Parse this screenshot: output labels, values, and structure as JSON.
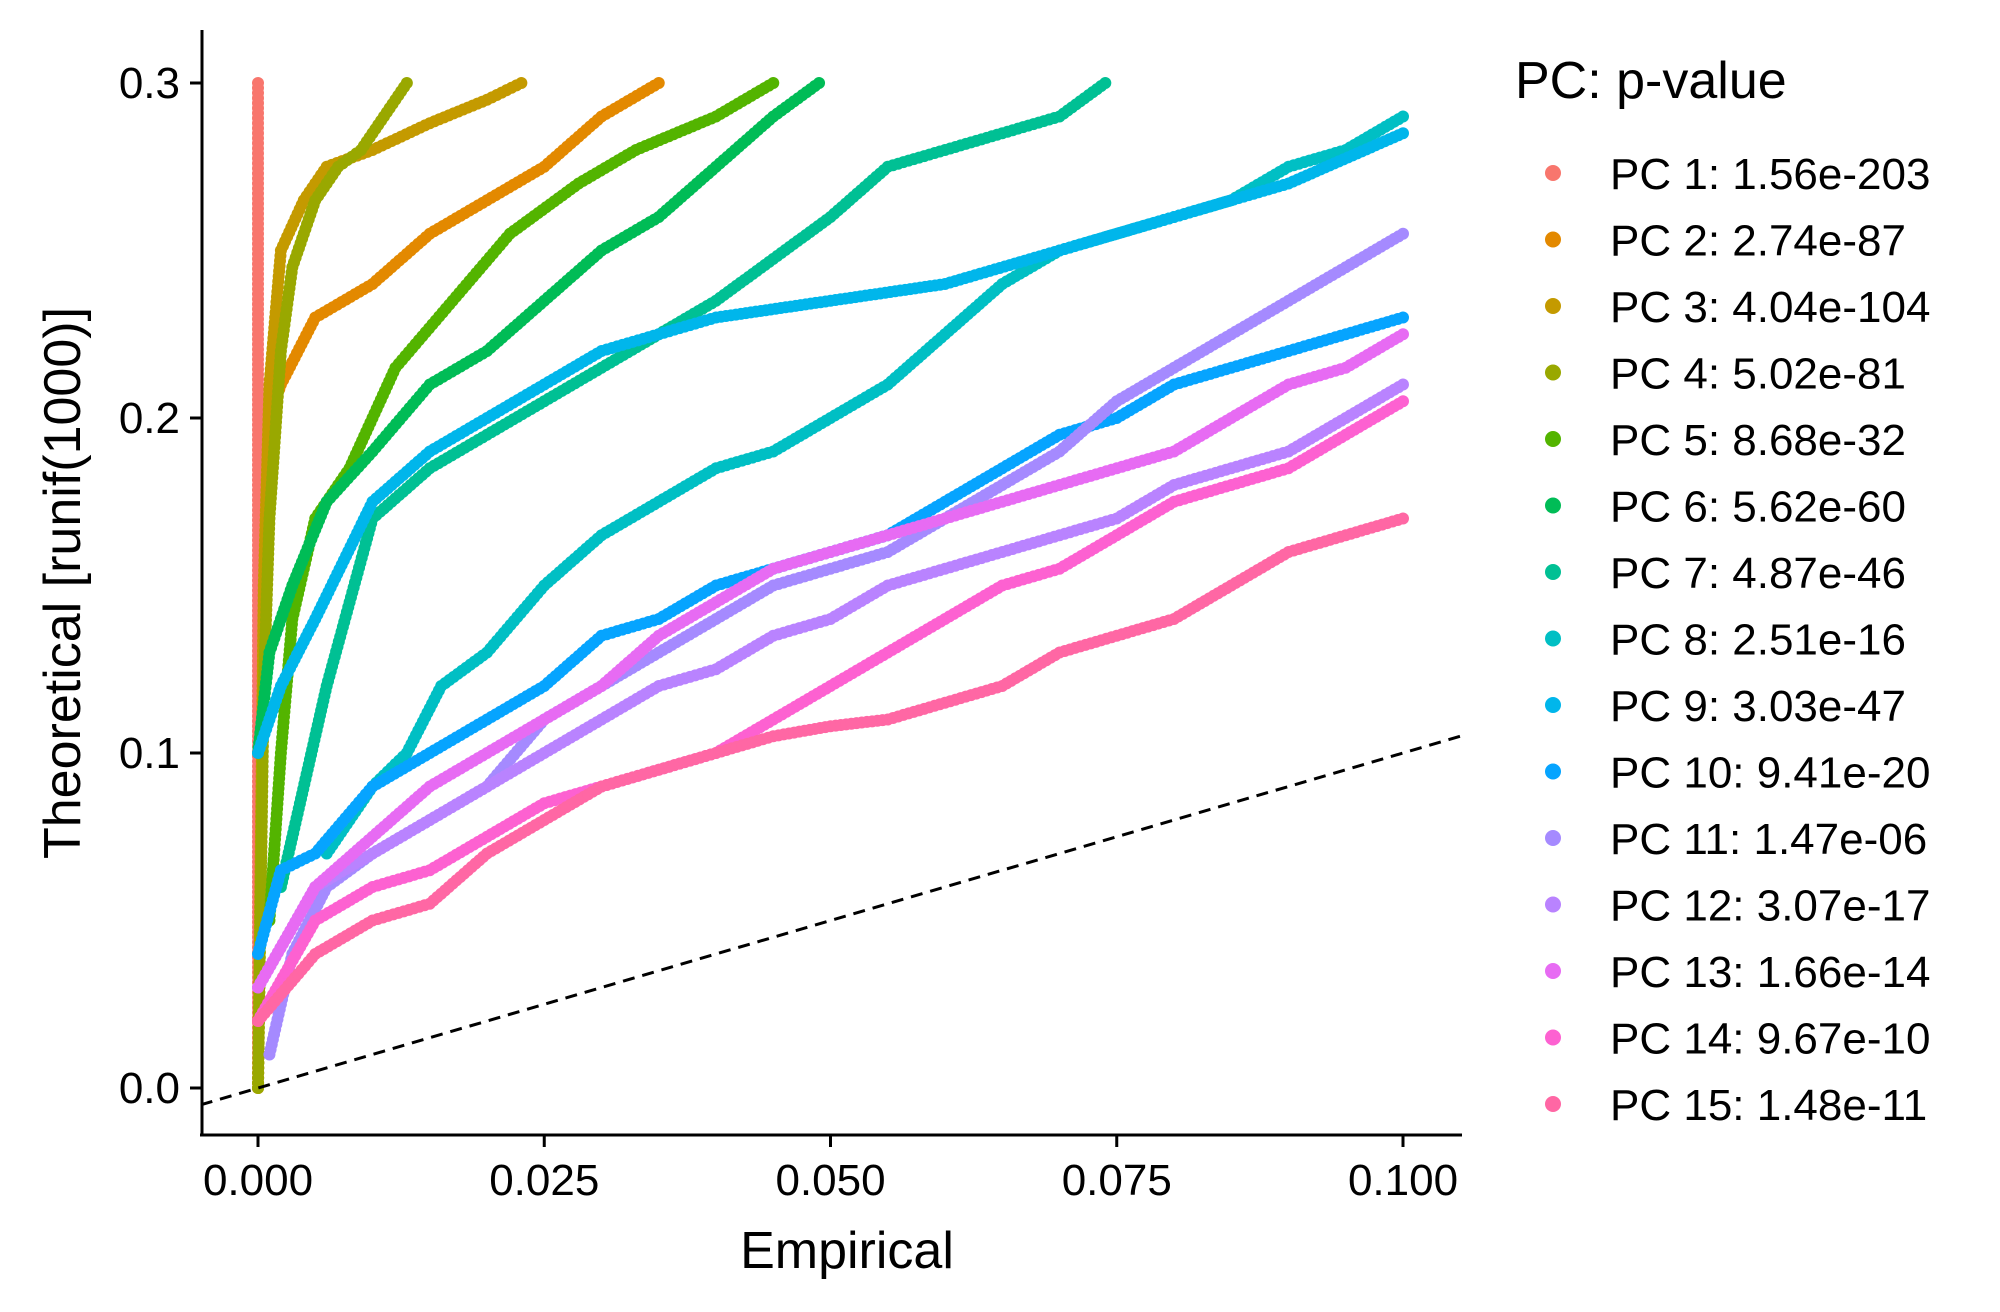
{
  "chart_data": {
    "type": "scatter",
    "title": "",
    "xlabel": "Empirical",
    "ylabel": "Theoretical [runif(1000)]",
    "xlim": [
      -0.005,
      0.105
    ],
    "ylim": [
      -0.015,
      0.32
    ],
    "x_ticks": [
      0.0,
      0.025,
      0.05,
      0.075,
      0.1
    ],
    "x_tick_labels": [
      "0.000",
      "0.025",
      "0.050",
      "0.075",
      "0.100"
    ],
    "y_ticks": [
      0.0,
      0.1,
      0.2,
      0.3
    ],
    "y_tick_labels": [
      "0.0",
      "0.1",
      "0.2",
      "0.3"
    ],
    "reference_line": {
      "slope": 1,
      "intercept": 0,
      "style": "dashed"
    },
    "legend_title": "PC: p-value",
    "legend_position": "right",
    "series": [
      {
        "name": "PC 1: 1.56e-203",
        "color": "#F8766D",
        "x": [
          0,
          0,
          0,
          0,
          0
        ],
        "y": [
          0.0,
          0.075,
          0.15,
          0.225,
          0.3
        ]
      },
      {
        "name": "PC 2: 2.74e-87",
        "color": "#E38900",
        "x": [
          0,
          0.0005,
          0.001,
          0.002,
          0.005,
          0.01,
          0.015,
          0.02,
          0.025,
          0.03,
          0.035
        ],
        "y": [
          0.0,
          0.14,
          0.2,
          0.21,
          0.23,
          0.24,
          0.255,
          0.265,
          0.275,
          0.29,
          0.3
        ]
      },
      {
        "name": "PC 3: 4.04e-104",
        "color": "#C49A00",
        "x": [
          0,
          0.0005,
          0.001,
          0.002,
          0.004,
          0.006,
          0.01,
          0.015,
          0.02,
          0.023
        ],
        "y": [
          0.0,
          0.15,
          0.21,
          0.25,
          0.265,
          0.275,
          0.28,
          0.288,
          0.295,
          0.3
        ]
      },
      {
        "name": "PC 4: 5.02e-81",
        "color": "#99A800",
        "x": [
          0,
          0.0005,
          0.001,
          0.002,
          0.003,
          0.005,
          0.007,
          0.009,
          0.011,
          0.013
        ],
        "y": [
          0.0,
          0.12,
          0.17,
          0.22,
          0.245,
          0.265,
          0.275,
          0.28,
          0.29,
          0.3
        ]
      },
      {
        "name": "PC 5: 8.68e-32",
        "color": "#53B400",
        "x": [
          0.001,
          0.002,
          0.003,
          0.005,
          0.008,
          0.012,
          0.017,
          0.022,
          0.028,
          0.033,
          0.04,
          0.045
        ],
        "y": [
          0.05,
          0.1,
          0.14,
          0.17,
          0.185,
          0.215,
          0.235,
          0.255,
          0.27,
          0.28,
          0.29,
          0.3
        ]
      },
      {
        "name": "PC 6: 5.62e-60",
        "color": "#00BC56",
        "x": [
          0,
          0.001,
          0.003,
          0.006,
          0.01,
          0.015,
          0.02,
          0.025,
          0.03,
          0.035,
          0.04,
          0.045,
          0.049
        ],
        "y": [
          0.1,
          0.13,
          0.15,
          0.175,
          0.19,
          0.21,
          0.22,
          0.235,
          0.25,
          0.26,
          0.275,
          0.29,
          0.3
        ]
      },
      {
        "name": "PC 7: 4.87e-46",
        "color": "#00C094",
        "x": [
          0.002,
          0.006,
          0.01,
          0.015,
          0.02,
          0.025,
          0.03,
          0.04,
          0.05,
          0.055,
          0.06,
          0.065,
          0.07,
          0.074
        ],
        "y": [
          0.06,
          0.12,
          0.17,
          0.185,
          0.195,
          0.205,
          0.215,
          0.235,
          0.26,
          0.275,
          0.28,
          0.285,
          0.29,
          0.3
        ]
      },
      {
        "name": "PC 8: 2.51e-16",
        "color": "#00BFC4",
        "x": [
          0.006,
          0.01,
          0.013,
          0.016,
          0.02,
          0.025,
          0.03,
          0.035,
          0.04,
          0.045,
          0.05,
          0.055,
          0.06,
          0.065,
          0.07,
          0.075,
          0.08,
          0.085,
          0.09,
          0.095,
          0.1
        ],
        "y": [
          0.07,
          0.09,
          0.1,
          0.12,
          0.13,
          0.15,
          0.165,
          0.175,
          0.185,
          0.19,
          0.2,
          0.21,
          0.225,
          0.24,
          0.25,
          0.255,
          0.26,
          0.265,
          0.275,
          0.28,
          0.29
        ]
      },
      {
        "name": "PC 9: 3.03e-47",
        "color": "#00B6EB",
        "x": [
          0,
          0.002,
          0.005,
          0.01,
          0.015,
          0.02,
          0.025,
          0.03,
          0.035,
          0.04,
          0.05,
          0.06,
          0.07,
          0.08,
          0.09,
          0.1
        ],
        "y": [
          0.1,
          0.12,
          0.14,
          0.175,
          0.19,
          0.2,
          0.21,
          0.22,
          0.225,
          0.23,
          0.235,
          0.24,
          0.25,
          0.26,
          0.27,
          0.285
        ]
      },
      {
        "name": "PC 10: 9.41e-20",
        "color": "#06A4FF",
        "x": [
          0,
          0.002,
          0.005,
          0.01,
          0.015,
          0.02,
          0.025,
          0.03,
          0.035,
          0.04,
          0.045,
          0.05,
          0.055,
          0.06,
          0.065,
          0.07,
          0.075,
          0.08,
          0.085,
          0.09,
          0.095,
          0.1
        ],
        "y": [
          0.04,
          0.065,
          0.07,
          0.09,
          0.1,
          0.11,
          0.12,
          0.135,
          0.14,
          0.15,
          0.155,
          0.16,
          0.165,
          0.175,
          0.185,
          0.195,
          0.2,
          0.21,
          0.215,
          0.22,
          0.225,
          0.23
        ]
      },
      {
        "name": "PC 11: 1.47e-06",
        "color": "#A58AFF",
        "x": [
          0.001,
          0.003,
          0.006,
          0.01,
          0.015,
          0.02,
          0.025,
          0.03,
          0.035,
          0.04,
          0.045,
          0.05,
          0.055,
          0.06,
          0.065,
          0.07,
          0.075,
          0.08,
          0.085,
          0.09,
          0.095,
          0.1
        ],
        "y": [
          0.01,
          0.04,
          0.06,
          0.07,
          0.08,
          0.09,
          0.11,
          0.12,
          0.13,
          0.14,
          0.15,
          0.155,
          0.16,
          0.17,
          0.18,
          0.19,
          0.205,
          0.215,
          0.225,
          0.235,
          0.245,
          0.255
        ]
      },
      {
        "name": "PC 12: 3.07e-17",
        "color": "#B983FF",
        "x": [
          0,
          0.005,
          0.01,
          0.015,
          0.02,
          0.025,
          0.03,
          0.035,
          0.04,
          0.045,
          0.05,
          0.055,
          0.06,
          0.065,
          0.07,
          0.075,
          0.08,
          0.085,
          0.09,
          0.095,
          0.1
        ],
        "y": [
          0.03,
          0.06,
          0.07,
          0.08,
          0.09,
          0.1,
          0.11,
          0.12,
          0.125,
          0.135,
          0.14,
          0.15,
          0.155,
          0.16,
          0.165,
          0.17,
          0.18,
          0.185,
          0.19,
          0.2,
          0.21
        ]
      },
      {
        "name": "PC 13: 1.66e-14",
        "color": "#E76BF3",
        "x": [
          0,
          0.005,
          0.01,
          0.015,
          0.02,
          0.025,
          0.03,
          0.035,
          0.04,
          0.045,
          0.05,
          0.055,
          0.06,
          0.065,
          0.07,
          0.075,
          0.08,
          0.085,
          0.09,
          0.095,
          0.1
        ],
        "y": [
          0.03,
          0.06,
          0.075,
          0.09,
          0.1,
          0.11,
          0.12,
          0.135,
          0.145,
          0.155,
          0.16,
          0.165,
          0.17,
          0.175,
          0.18,
          0.185,
          0.19,
          0.2,
          0.21,
          0.215,
          0.225
        ]
      },
      {
        "name": "PC 14: 9.67e-10",
        "color": "#FD61D1",
        "x": [
          0,
          0.005,
          0.01,
          0.015,
          0.02,
          0.025,
          0.03,
          0.035,
          0.04,
          0.045,
          0.05,
          0.055,
          0.06,
          0.065,
          0.07,
          0.075,
          0.08,
          0.085,
          0.09,
          0.095,
          0.1
        ],
        "y": [
          0.02,
          0.05,
          0.06,
          0.065,
          0.075,
          0.085,
          0.09,
          0.095,
          0.1,
          0.11,
          0.12,
          0.13,
          0.14,
          0.15,
          0.155,
          0.165,
          0.175,
          0.18,
          0.185,
          0.195,
          0.205
        ]
      },
      {
        "name": "PC 15: 1.48e-11",
        "color": "#FF67A4",
        "x": [
          0,
          0.005,
          0.01,
          0.015,
          0.02,
          0.025,
          0.03,
          0.035,
          0.04,
          0.045,
          0.05,
          0.055,
          0.06,
          0.065,
          0.07,
          0.075,
          0.08,
          0.085,
          0.09,
          0.095,
          0.1
        ],
        "y": [
          0.02,
          0.04,
          0.05,
          0.055,
          0.07,
          0.08,
          0.09,
          0.095,
          0.1,
          0.105,
          0.108,
          0.11,
          0.115,
          0.12,
          0.13,
          0.135,
          0.14,
          0.15,
          0.16,
          0.165,
          0.17
        ]
      }
    ]
  }
}
